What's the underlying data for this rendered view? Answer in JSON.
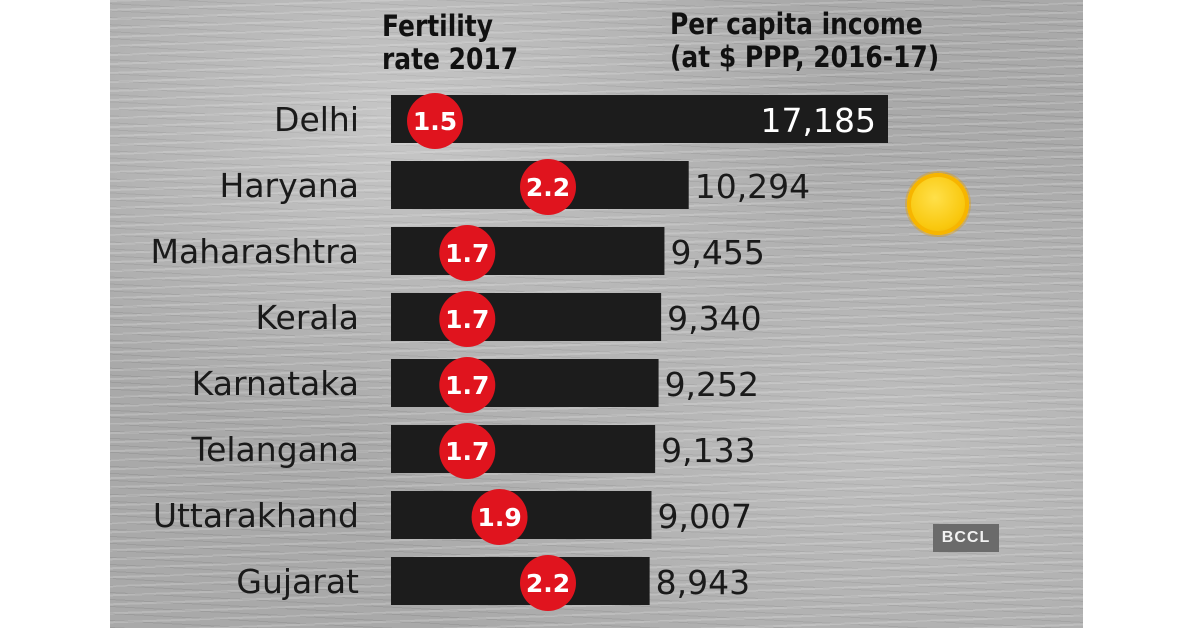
{
  "header": {
    "fertility_line1": "Fertility",
    "fertility_line2": "rate 2017",
    "income_line1": "Per capita income",
    "income_line2": "(at $ PPP, 2016-17)"
  },
  "watermark": "BCCL",
  "colors": {
    "bar": "#1c1c1c",
    "bubble": "#e0141e",
    "coin": "#f9c80e"
  },
  "chart_data": {
    "type": "bar",
    "orientation": "horizontal",
    "categories": [
      "Delhi",
      "Haryana",
      "Maharashtra",
      "Kerala",
      "Karnataka",
      "Telangana",
      "Uttarakhand",
      "Gujarat"
    ],
    "series": [
      {
        "name": "Per capita income (at $ PPP, 2016-17)",
        "values": [
          17185,
          10294,
          9455,
          9340,
          9252,
          9133,
          9007,
          8943
        ],
        "labels": [
          "17,185",
          "10,294",
          "9,455",
          "9,340",
          "9,252",
          "9,133",
          "9,007",
          "8,943"
        ]
      },
      {
        "name": "Fertility rate 2017",
        "values": [
          1.5,
          2.2,
          1.7,
          1.7,
          1.7,
          1.7,
          1.9,
          2.2
        ],
        "labels": [
          "1.5",
          "2.2",
          "1.7",
          "1.7",
          "1.7",
          "1.7",
          "1.9",
          "2.2"
        ]
      }
    ],
    "title": "",
    "xlabel": "",
    "ylabel": ""
  }
}
